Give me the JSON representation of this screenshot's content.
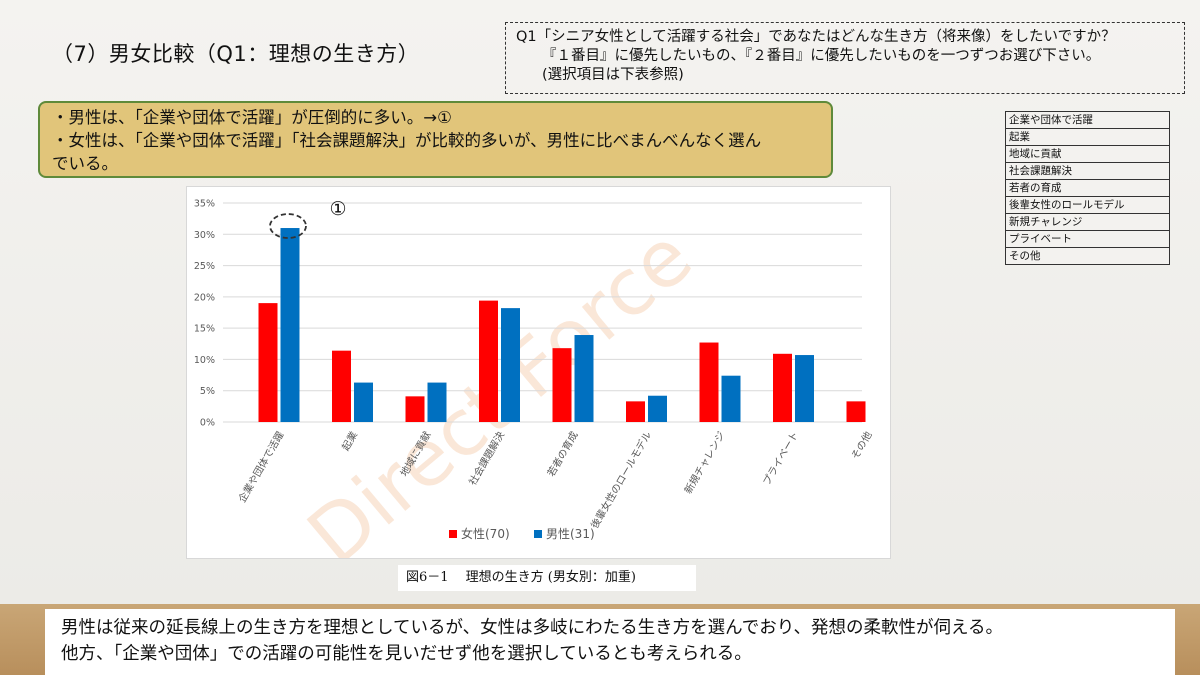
{
  "slide": {
    "title": "（7）男女比較（Q1：理想の生き方）",
    "question_line1": "Q1「シニア女性として活躍する社会」であなたはどんな生き方（将来像）をしたいですか？",
    "question_line2": "『１番目』に優先したいもの、『２番目』に優先したいものを一つずつお選び下さい。",
    "question_line3": "(選択項目は下表参照)",
    "summary_line1": "・男性は、「企業や団体で活躍」が圧倒的に多い。→①",
    "summary_line2": "・女性は、「企業や団体で活躍」「社会課題解決」が比較的多いが、男性に比べまんべんなく選ん",
    "summary_line3": "でいる。",
    "caption": "図6－1　 理想の生き方 (男女別：加重)",
    "conclusion_line1": "男性は従来の延長線上の生き方を理想としているが、女性は多岐にわたる生き方を選んでおり、発想の柔軟性が伺える。",
    "conclusion_line2": "他方、「企業や団体」での活躍の可能性を見いだせず他を選択しているとも考えられる。",
    "watermark": "Direct Force",
    "options": [
      "企業や団体で活躍",
      "起業",
      "地域に貢献",
      "社会課題解決",
      "若者の育成",
      "後輩女性のロールモデル",
      "新規チャレンジ",
      "プライベート",
      "その他"
    ]
  },
  "chart_data": {
    "type": "bar",
    "categories": [
      "企業や団体で活躍",
      "起業",
      "地域に貢献",
      "社会課題解決",
      "若者の育成",
      "後輩女性のロールモデル",
      "新規チャレンジ",
      "プライベート",
      "その他"
    ],
    "series": [
      {
        "name": "女性(70)",
        "color": "#ff0000",
        "values": [
          19.0,
          11.4,
          4.1,
          19.4,
          11.8,
          3.3,
          12.7,
          10.9,
          3.3
        ]
      },
      {
        "name": "男性(31)",
        "color": "#0070c0",
        "values": [
          31.0,
          6.3,
          6.3,
          18.2,
          13.9,
          4.2,
          7.4,
          10.7,
          null
        ]
      }
    ],
    "yticks": [
      "0%",
      "5%",
      "10%",
      "15%",
      "20%",
      "25%",
      "30%",
      "35%"
    ],
    "ylim": [
      0,
      35
    ],
    "grid": true,
    "legend": "bottom",
    "annotation": "①"
  }
}
